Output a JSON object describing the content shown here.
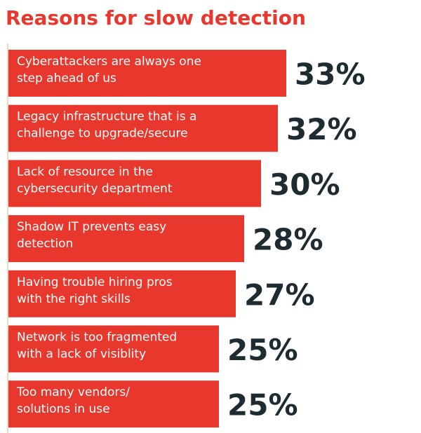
{
  "colors": {
    "bar": "#e8372c",
    "title": "#e8372c",
    "value_text": "#1d2b33",
    "label_text": "#ffffff",
    "axis": "#e9dcc4"
  },
  "chart_data": {
    "type": "bar",
    "orientation": "horizontal",
    "title": "Reasons for slow detection",
    "categories": [
      [
        "Cyberattackers are always one",
        "step ahead of us"
      ],
      [
        "Legacy infrastructure that is a",
        "challenge to upgrade/secure"
      ],
      [
        "Lack of resource in the",
        "cybersecurity department"
      ],
      [
        "Shadow IT prevents easy",
        "detection"
      ],
      [
        "Having trouble hiring pros",
        "with the right skills"
      ],
      [
        "Network is too fragmented",
        "with a lack of visiblity"
      ],
      [
        "Too many vendors/",
        "solutions in use"
      ]
    ],
    "values": [
      33,
      32,
      30,
      28,
      27,
      25,
      25
    ],
    "value_labels": [
      "33%",
      "32%",
      "30%",
      "28%",
      "27%",
      "25%",
      "25%"
    ],
    "unit": "%",
    "grid": false,
    "legend": "none"
  }
}
